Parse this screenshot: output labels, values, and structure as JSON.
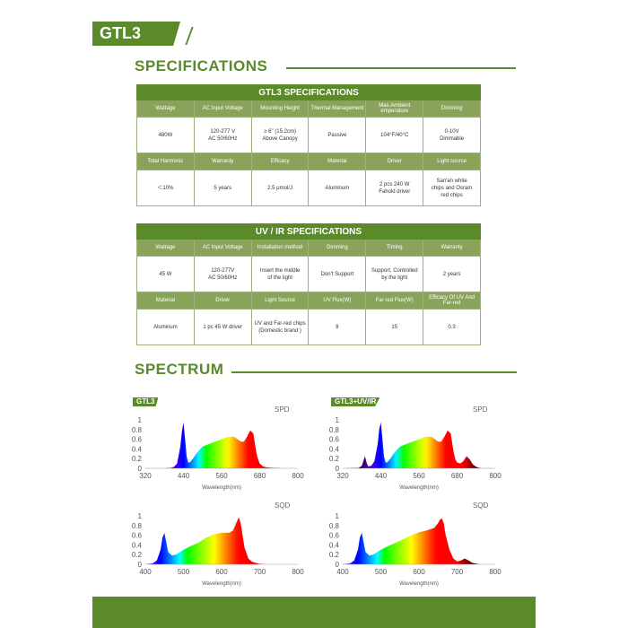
{
  "header": {
    "model_tag": "GTL3"
  },
  "sections": {
    "specifications": "SPECIFICATIONS",
    "spectrum": "SPECTRUM"
  },
  "colors": {
    "brand_green": "#5a8a2a",
    "header_cell_green": "#8aa35a",
    "border": "#9bb07a"
  },
  "gtl3_table": {
    "title": "GTL3 SPECIFICATIONS",
    "row1_headers": [
      "Wattage",
      "AC Input Voltage",
      "Mounting Height",
      "Thermal Management",
      "Max.Ambient emperature",
      "Dimming"
    ],
    "row1_values": [
      "480W",
      "120-277 V\nAC 50/60Hz",
      "≥ 6\" (15.2cm)\nAbove Canopy",
      "Passive",
      "104°F/40°C",
      "0-10V\nDimmable"
    ],
    "row2_headers": [
      "Total Harmonic",
      "Warranty",
      "Efficacy",
      "Material",
      "Driver",
      "Light source"
    ],
    "row2_values": [
      "＜10%",
      "5 years",
      "2.5 μmol/J",
      "Aluminum",
      "2 pcs 240 W\nFahold driver",
      "San'an white\nchips and Osram\nred chips"
    ]
  },
  "uvir_table": {
    "title": "UV / IR SPECIFICATIONS",
    "row1_headers": [
      "Wattage",
      "AC Input Voltage",
      "Installation method",
      "Dimming",
      "Timing",
      "Warranty"
    ],
    "row1_values": [
      "45 W",
      "120-277V\nAC 50/60Hz",
      "Insert the middle\nof the light",
      "Don't Support",
      "Support, Controlled\nby the light",
      "2 years"
    ],
    "row2_headers": [
      "Material",
      "Driver",
      "Light Source",
      "UV Flux(W)",
      "Far red Flux(W)",
      "Efficacy Of UV And Far-red"
    ],
    "row2_values": [
      "Aluminum",
      "1 pc 45 W driver",
      "UV and Far-red chips\n(Domestic brand )",
      "8",
      "15",
      "0.3"
    ]
  },
  "chart_data": [
    {
      "type": "area",
      "tag": "GTL3",
      "kind": "SPD",
      "xlabel": "Wavelength(nm)",
      "xlim": [
        320,
        800
      ],
      "ylim": [
        0,
        1.0
      ],
      "x_ticks": [
        320,
        440,
        560,
        680,
        800
      ],
      "y_ticks": [
        0,
        0.2,
        0.4,
        0.6,
        0.8,
        1.0
      ],
      "x": [
        330,
        380,
        400,
        410,
        420,
        430,
        435,
        440,
        445,
        450,
        455,
        460,
        470,
        480,
        490,
        500,
        520,
        540,
        560,
        580,
        600,
        620,
        630,
        640,
        650,
        660,
        665,
        670,
        675,
        680,
        690,
        700,
        720,
        750,
        800
      ],
      "y": [
        0,
        0,
        0.01,
        0.03,
        0.1,
        0.45,
        0.75,
        0.95,
        0.6,
        0.25,
        0.12,
        0.12,
        0.2,
        0.3,
        0.38,
        0.45,
        0.5,
        0.55,
        0.6,
        0.65,
        0.65,
        0.55,
        0.55,
        0.65,
        0.78,
        0.72,
        0.5,
        0.3,
        0.18,
        0.1,
        0.04,
        0.02,
        0.01,
        0,
        0
      ]
    },
    {
      "type": "area",
      "tag": "GTL3+UV/IR",
      "kind": "SPD",
      "xlabel": "Wavelength(nm)",
      "xlim": [
        320,
        800
      ],
      "ylim": [
        0,
        1.0
      ],
      "x_ticks": [
        320,
        440,
        560,
        680,
        800
      ],
      "y_ticks": [
        0,
        0.2,
        0.4,
        0.6,
        0.8,
        1.0
      ],
      "x": [
        330,
        370,
        380,
        385,
        390,
        395,
        400,
        410,
        420,
        430,
        435,
        440,
        445,
        450,
        455,
        460,
        470,
        480,
        490,
        500,
        520,
        540,
        560,
        580,
        600,
        620,
        630,
        640,
        650,
        660,
        665,
        670,
        675,
        680,
        690,
        700,
        710,
        720,
        730,
        740,
        750,
        760,
        800
      ],
      "y": [
        0,
        0.01,
        0.05,
        0.15,
        0.25,
        0.12,
        0.04,
        0.05,
        0.15,
        0.5,
        0.8,
        0.95,
        0.6,
        0.25,
        0.12,
        0.12,
        0.2,
        0.3,
        0.38,
        0.45,
        0.5,
        0.55,
        0.6,
        0.65,
        0.65,
        0.55,
        0.55,
        0.65,
        0.78,
        0.72,
        0.5,
        0.3,
        0.18,
        0.12,
        0.1,
        0.15,
        0.25,
        0.18,
        0.08,
        0.03,
        0.01,
        0,
        0
      ]
    },
    {
      "type": "area",
      "tag": "",
      "kind": "SQD",
      "xlabel": "Wavelength(nm)",
      "xlim": [
        400,
        800
      ],
      "ylim": [
        0,
        1.0
      ],
      "x_ticks": [
        400,
        500,
        600,
        700,
        800
      ],
      "y_ticks": [
        0,
        0.2,
        0.4,
        0.6,
        0.8,
        1.0
      ],
      "x": [
        400,
        420,
        430,
        440,
        445,
        450,
        455,
        460,
        470,
        480,
        500,
        520,
        540,
        560,
        580,
        600,
        620,
        630,
        640,
        645,
        650,
        655,
        660,
        670,
        680,
        700,
        720,
        760,
        800
      ],
      "y": [
        0,
        0.02,
        0.08,
        0.3,
        0.55,
        0.65,
        0.45,
        0.25,
        0.18,
        0.2,
        0.3,
        0.38,
        0.45,
        0.55,
        0.62,
        0.65,
        0.65,
        0.7,
        0.88,
        0.97,
        0.85,
        0.6,
        0.35,
        0.12,
        0.05,
        0.01,
        0,
        0,
        0
      ]
    },
    {
      "type": "area",
      "tag": "",
      "kind": "SQD",
      "xlabel": "Wavelength(nm)",
      "xlim": [
        400,
        800
      ],
      "ylim": [
        0,
        1.0
      ],
      "x_ticks": [
        400,
        500,
        600,
        700,
        800
      ],
      "y_ticks": [
        0,
        0.2,
        0.4,
        0.6,
        0.8,
        1.0
      ],
      "x": [
        400,
        420,
        430,
        440,
        445,
        450,
        455,
        460,
        470,
        480,
        500,
        520,
        540,
        560,
        580,
        600,
        620,
        640,
        650,
        655,
        660,
        665,
        670,
        680,
        690,
        700,
        710,
        720,
        730,
        740,
        760,
        800
      ],
      "y": [
        0,
        0.02,
        0.08,
        0.3,
        0.55,
        0.65,
        0.45,
        0.25,
        0.18,
        0.2,
        0.3,
        0.38,
        0.45,
        0.52,
        0.6,
        0.66,
        0.7,
        0.75,
        0.85,
        0.92,
        0.95,
        0.85,
        0.6,
        0.3,
        0.12,
        0.06,
        0.08,
        0.12,
        0.08,
        0.03,
        0,
        0
      ]
    }
  ]
}
